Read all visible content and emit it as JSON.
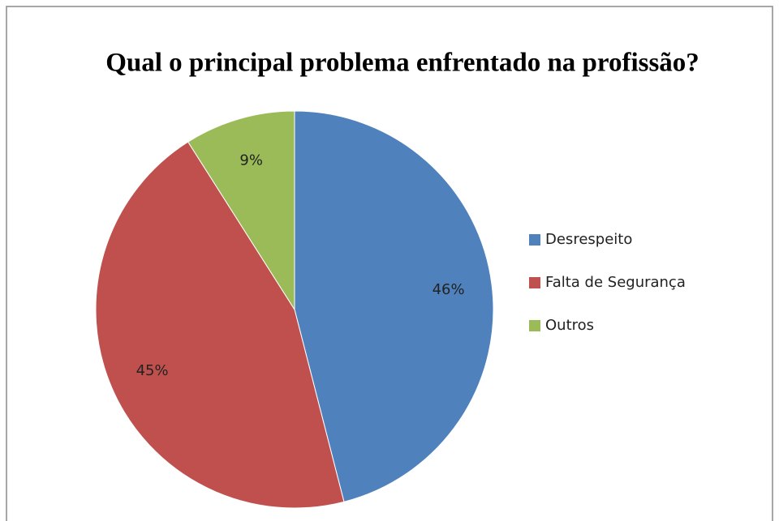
{
  "chart_data": {
    "type": "pie",
    "title": "Qual o principal problema enfrentado na profissão?",
    "categories": [
      "Desrespeito",
      "Falta de Segurança",
      "Outros"
    ],
    "values": [
      46,
      45,
      9
    ],
    "value_labels": [
      "46%",
      "45%",
      "9%"
    ],
    "colors": [
      "#4f81bd",
      "#c0504d",
      "#9bbb59"
    ],
    "legend": "right"
  }
}
